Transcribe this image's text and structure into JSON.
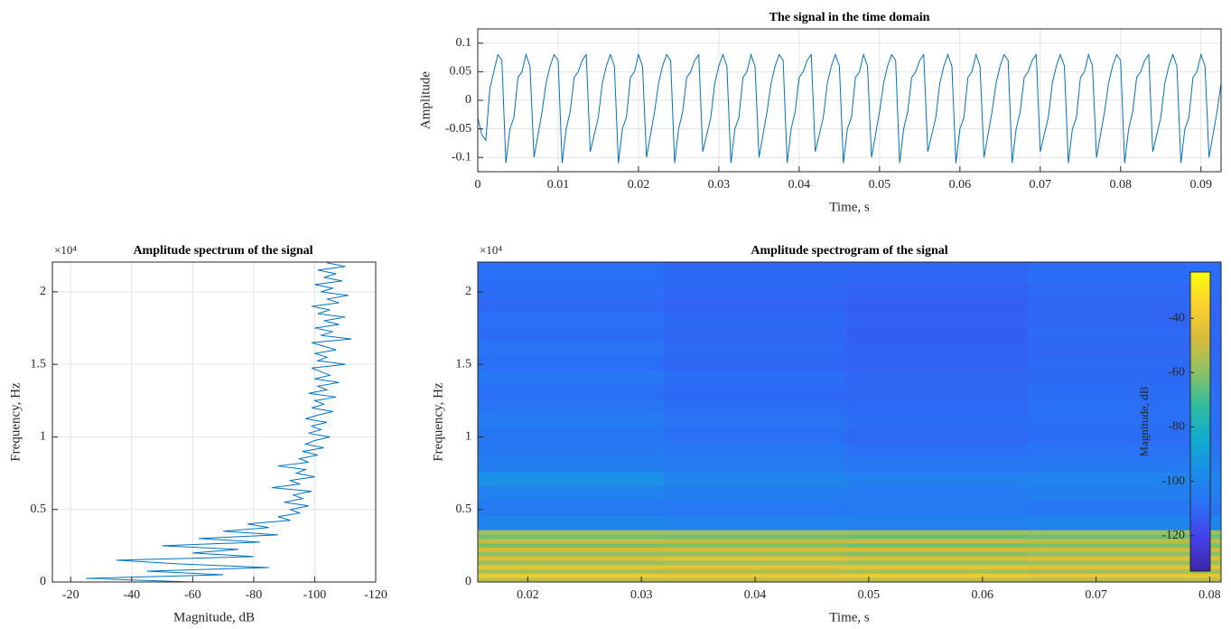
{
  "chart_data": [
    {
      "type": "line",
      "title": "The signal in the time domain",
      "xlabel": "Time, s",
      "ylabel": "Amplitude",
      "color": "#0072bd",
      "grid": true,
      "xlim": [
        0,
        0.0925
      ],
      "ylim": [
        -0.125,
        0.125
      ],
      "xticks": [
        0,
        0.01,
        0.02,
        0.03,
        0.04,
        0.05,
        0.06,
        0.07,
        0.08,
        0.09
      ],
      "yticks": [
        -0.1,
        -0.05,
        0,
        0.05,
        0.1
      ],
      "x": [
        0,
        0.0005,
        0.001,
        0.0015,
        0.002,
        0.0025,
        0.003,
        0.0035,
        0.004,
        0.0045,
        0.005,
        0.0055,
        0.006,
        0.0065,
        0.007,
        0.0075,
        0.008,
        0.0085,
        0.009,
        0.0095,
        0.01,
        0.0105,
        0.011,
        0.0115,
        0.012,
        0.0125,
        0.013,
        0.0135,
        0.014,
        0.0145,
        0.015,
        0.0155,
        0.016,
        0.0165,
        0.017,
        0.0175,
        0.018,
        0.0185,
        0.019,
        0.0195,
        0.02,
        0.0205,
        0.021,
        0.0215,
        0.022,
        0.0225,
        0.023,
        0.0235,
        0.024,
        0.0245,
        0.025,
        0.0255,
        0.026,
        0.0265,
        0.027,
        0.0275,
        0.028,
        0.0285,
        0.029,
        0.0295,
        0.03,
        0.0305,
        0.031,
        0.0315,
        0.032,
        0.0325,
        0.033,
        0.0335,
        0.034,
        0.0345,
        0.035,
        0.0355,
        0.036,
        0.0365,
        0.037,
        0.0375,
        0.038,
        0.0385,
        0.039,
        0.0395,
        0.04,
        0.0405,
        0.041,
        0.0415,
        0.042,
        0.0425,
        0.043,
        0.0435,
        0.044,
        0.0445,
        0.045,
        0.0455,
        0.046,
        0.0465,
        0.047,
        0.0475,
        0.048,
        0.0485,
        0.049,
        0.0495,
        0.05,
        0.0505,
        0.051,
        0.0515,
        0.052,
        0.0525,
        0.053,
        0.0535,
        0.054,
        0.0545,
        0.055,
        0.0555,
        0.056,
        0.0565,
        0.057,
        0.0575,
        0.058,
        0.0585,
        0.059,
        0.0595,
        0.06,
        0.0605,
        0.061,
        0.0615,
        0.062,
        0.0625,
        0.063,
        0.0635,
        0.064,
        0.0645,
        0.065,
        0.0655,
        0.066,
        0.0665,
        0.067,
        0.0675,
        0.068,
        0.0685,
        0.069,
        0.0695,
        0.07,
        0.0705,
        0.071,
        0.0715,
        0.072,
        0.0725,
        0.073,
        0.0735,
        0.074,
        0.0745,
        0.075,
        0.0755,
        0.076,
        0.0765,
        0.077,
        0.0775,
        0.078,
        0.0785,
        0.079,
        0.0795,
        0.08,
        0.0805,
        0.081,
        0.0815,
        0.082,
        0.0825,
        0.083,
        0.0835,
        0.084,
        0.0845,
        0.085,
        0.0855,
        0.086,
        0.0865,
        0.087,
        0.0875,
        0.088,
        0.0885,
        0.089,
        0.0895,
        0.09,
        0.0905,
        0.091,
        0.0915,
        0.092,
        0.0925
      ],
      "values": [
        -0.03,
        -0.06,
        -0.07,
        0.02,
        0.05,
        0.08,
        0.07,
        -0.11,
        -0.05,
        -0.03,
        0.04,
        0.05,
        0.08,
        0.06,
        -0.1,
        -0.06,
        -0.02,
        0.03,
        0.06,
        0.08,
        0.07,
        -0.11,
        -0.05,
        -0.02,
        0.04,
        0.05,
        0.07,
        0.08,
        -0.09,
        -0.06,
        -0.03,
        0.03,
        0.06,
        0.08,
        0.06,
        -0.11,
        -0.05,
        -0.03,
        0.04,
        0.05,
        0.08,
        0.06,
        -0.1,
        -0.06,
        -0.02,
        0.03,
        0.06,
        0.08,
        0.07,
        -0.11,
        -0.05,
        -0.02,
        0.04,
        0.05,
        0.07,
        0.08,
        -0.09,
        -0.06,
        -0.03,
        0.03,
        0.06,
        0.08,
        0.06,
        -0.11,
        -0.05,
        -0.03,
        0.04,
        0.05,
        0.08,
        0.06,
        -0.1,
        -0.06,
        -0.02,
        0.03,
        0.06,
        0.08,
        0.07,
        -0.11,
        -0.05,
        -0.02,
        0.04,
        0.05,
        0.07,
        0.08,
        -0.09,
        -0.06,
        -0.03,
        0.03,
        0.06,
        0.08,
        0.06,
        -0.11,
        -0.05,
        -0.03,
        0.04,
        0.05,
        0.08,
        0.06,
        -0.1,
        -0.06,
        -0.02,
        0.03,
        0.06,
        0.08,
        0.07,
        -0.11,
        -0.05,
        -0.02,
        0.04,
        0.05,
        0.07,
        0.08,
        -0.09,
        -0.06,
        -0.03,
        0.03,
        0.06,
        0.08,
        0.06,
        -0.11,
        -0.05,
        -0.03,
        0.04,
        0.05,
        0.08,
        0.06,
        -0.1,
        -0.06,
        -0.02,
        0.03,
        0.06,
        0.08,
        0.07,
        -0.11,
        -0.05,
        -0.02,
        0.04,
        0.05,
        0.07,
        0.08,
        -0.09,
        -0.06,
        -0.03,
        0.03,
        0.06,
        0.08,
        0.06,
        -0.11,
        -0.05,
        -0.03,
        0.04,
        0.05,
        0.08,
        0.06,
        -0.1,
        -0.06,
        -0.02,
        0.03,
        0.06,
        0.08,
        0.07,
        -0.11,
        -0.05,
        -0.02,
        0.04,
        0.05,
        0.07,
        0.08,
        -0.09,
        -0.06,
        -0.03,
        0.03,
        0.06,
        0.08,
        0.06,
        -0.11,
        -0.05,
        -0.03,
        0.04,
        0.05,
        0.08,
        0.06,
        -0.1,
        -0.06,
        -0.02,
        0.03
      ]
    },
    {
      "type": "line",
      "orientation": "horizontal",
      "title": "Amplitude spectrum of the signal",
      "xlabel": "Magnitude, dB",
      "ylabel": "Frequency, Hz",
      "y_exponent": "×10⁴",
      "color": "#0072bd",
      "grid": true,
      "xlim": [
        -14,
        -120
      ],
      "ylim": [
        0,
        22050
      ],
      "xticks": [
        -20,
        -40,
        -60,
        -80,
        -100,
        -120
      ],
      "yticks": [
        0,
        {
          "value": 5000,
          "label": "0.5"
        },
        {
          "value": 10000,
          "label": "1"
        },
        {
          "value": 15000,
          "label": "1.5"
        },
        {
          "value": 20000,
          "label": "2"
        }
      ],
      "y": [
        0,
        250,
        500,
        750,
        1000,
        1250,
        1500,
        1750,
        2000,
        2250,
        2500,
        2750,
        3000,
        3250,
        3500,
        3750,
        4000,
        4250,
        4500,
        4750,
        5000,
        5250,
        5500,
        5750,
        6000,
        6250,
        6500,
        6750,
        7000,
        7250,
        7500,
        7750,
        8000,
        8250,
        8500,
        8750,
        9000,
        9250,
        9500,
        9750,
        10000,
        10250,
        10500,
        10750,
        11000,
        11250,
        11500,
        11750,
        12000,
        12250,
        12500,
        12750,
        13000,
        13250,
        13500,
        13750,
        14000,
        14250,
        14500,
        14750,
        15000,
        15250,
        15500,
        15750,
        16000,
        16250,
        16500,
        16750,
        17000,
        17250,
        17500,
        17750,
        18000,
        18250,
        18500,
        18750,
        19000,
        19250,
        19500,
        19750,
        20000,
        20250,
        20500,
        20750,
        21000,
        21250,
        21500,
        21750,
        22000
      ],
      "values": [
        -60,
        -25,
        -70,
        -45,
        -85,
        -55,
        -35,
        -80,
        -60,
        -75,
        -50,
        -82,
        -62,
        -88,
        -70,
        -85,
        -78,
        -92,
        -88,
        -95,
        -92,
        -98,
        -90,
        -96,
        -93,
        -99,
        -86,
        -95,
        -92,
        -100,
        -94,
        -97,
        -88,
        -98,
        -95,
        -101,
        -96,
        -103,
        -97,
        -100,
        -105,
        -98,
        -102,
        -99,
        -104,
        -97,
        -101,
        -106,
        -99,
        -103,
        -100,
        -107,
        -98,
        -104,
        -101,
        -108,
        -100,
        -105,
        -102,
        -99,
        -110,
        -101,
        -104,
        -100,
        -107,
        -103,
        -99,
        -112,
        -102,
        -106,
        -100,
        -108,
        -103,
        -110,
        -101,
        -105,
        -99,
        -108,
        -104,
        -111,
        -102,
        -106,
        -100,
        -109,
        -103,
        -107,
        -101,
        -110,
        -104
      ]
    },
    {
      "type": "heatmap",
      "title": "Amplitude spectrogram of the signal",
      "xlabel": "Time, s",
      "ylabel": "Frequency, Hz",
      "y_exponent": "×10⁴",
      "xlim": [
        0.0156,
        0.081
      ],
      "ylim": [
        0,
        22050
      ],
      "xticks": [
        0.02,
        0.03,
        0.04,
        0.05,
        0.06,
        0.07,
        0.08
      ],
      "yticks": [
        0,
        {
          "value": 5000,
          "label": "0.5"
        },
        {
          "value": 10000,
          "label": "1"
        },
        {
          "value": 15000,
          "label": "1.5"
        },
        {
          "value": 20000,
          "label": "2"
        }
      ],
      "x_edges": [
        0.0156,
        0.032,
        0.048,
        0.064,
        0.081
      ],
      "y_edges": [
        0,
        300,
        600,
        900,
        1200,
        1500,
        1800,
        2100,
        2400,
        2700,
        3000,
        3300,
        3600,
        4600,
        5600,
        6600,
        7600,
        8600,
        9600,
        10600,
        11600,
        12600,
        13600,
        14600,
        15600,
        16600,
        17600,
        18600,
        19600,
        20600,
        22050
      ],
      "values": [
        [
          -52,
          -51,
          -52,
          -53
        ],
        [
          -40,
          -41,
          -40,
          -42
        ],
        [
          -55,
          -54,
          -55,
          -56
        ],
        [
          -42,
          -43,
          -42,
          -44
        ],
        [
          -57,
          -56,
          -58,
          -57
        ],
        [
          -45,
          -44,
          -46,
          -45
        ],
        [
          -60,
          -59,
          -61,
          -60
        ],
        [
          -47,
          -48,
          -47,
          -49
        ],
        [
          -62,
          -61,
          -63,
          -62
        ],
        [
          -50,
          -51,
          -50,
          -52
        ],
        [
          -64,
          -63,
          -65,
          -64
        ],
        [
          -55,
          -56,
          -55,
          -57
        ],
        [
          -100,
          -101,
          -102,
          -100
        ],
        [
          -104,
          -105,
          -104,
          -106
        ],
        [
          -102,
          -103,
          -104,
          -103
        ],
        [
          -96,
          -100,
          -102,
          -101
        ],
        [
          -103,
          -104,
          -106,
          -105
        ],
        [
          -105,
          -106,
          -108,
          -107
        ],
        [
          -106,
          -108,
          -110,
          -109
        ],
        [
          -104,
          -107,
          -109,
          -108
        ],
        [
          -107,
          -109,
          -110,
          -108
        ],
        [
          -108,
          -110,
          -111,
          -109
        ],
        [
          -106,
          -109,
          -111,
          -110
        ],
        [
          -108,
          -111,
          -112,
          -110
        ],
        [
          -107,
          -110,
          -112,
          -111
        ],
        [
          -109,
          -111,
          -113,
          -110
        ],
        [
          -108,
          -110,
          -112,
          -111
        ],
        [
          -110,
          -112,
          -113,
          -111
        ],
        [
          -109,
          -111,
          -112,
          -110
        ],
        [
          -108,
          -110,
          -111,
          -109
        ]
      ],
      "colormap": [
        "#3e26a8",
        "#4440e8",
        "#2b6ff7",
        "#1a8fe8",
        "#12acd0",
        "#30bc9d",
        "#8bc263",
        "#d8ba3c",
        "#fbd22e",
        "#f9fb0e"
      ],
      "colorbar": {
        "label": "Magnitude, dB",
        "clim": [
          -133,
          -23
        ],
        "ticks": [
          -120,
          -100,
          -80,
          -60,
          -40
        ]
      }
    }
  ]
}
